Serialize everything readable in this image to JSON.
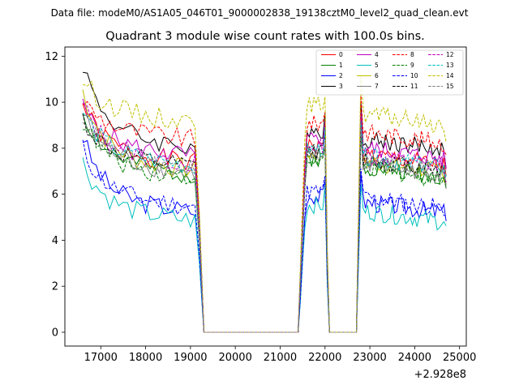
{
  "chart_data": {
    "type": "line",
    "suptitle": "Data file: modeM0/AS1A05_046T01_9000002838_19138cztM0_level2_quad_clean.evt",
    "title": "Quadrant 3 module wise count rates with 100.0s bins.",
    "xlabel": "",
    "ylabel": "",
    "x_offset_label": "+2.928e8",
    "xlim": [
      16200,
      25150
    ],
    "ylim": [
      -0.6,
      12.4
    ],
    "xticks": [
      17000,
      18000,
      19000,
      20000,
      21000,
      22000,
      23000,
      24000,
      25000
    ],
    "xtick_labels": [
      "17000",
      "18000",
      "19000",
      "20000",
      "21000",
      "22000",
      "23000",
      "24000",
      "25000"
    ],
    "yticks": [
      0,
      2,
      4,
      6,
      8,
      10,
      12
    ],
    "ytick_labels": [
      "0",
      "2",
      "4",
      "6",
      "8",
      "10",
      "12"
    ],
    "legend_position": "top-right",
    "segments": [
      {
        "t0": 16600,
        "t1": 19300,
        "step": 100
      },
      {
        "t0": 19300,
        "t1": 21400,
        "step": 100
      },
      {
        "t0": 21400,
        "t1": 22100,
        "step": 50
      },
      {
        "t0": 22100,
        "t1": 22700,
        "step": 100
      },
      {
        "t0": 22700,
        "t1": 24700,
        "step": 50
      }
    ],
    "series": [
      {
        "name": "0",
        "color": "#ff0000",
        "dash": "solid",
        "level": 7.9,
        "start": 9.9,
        "seed": 1
      },
      {
        "name": "1",
        "color": "#008000",
        "dash": "solid",
        "level": 7.4,
        "start": 9.6,
        "seed": 2
      },
      {
        "name": "2",
        "color": "#0000ff",
        "dash": "solid",
        "level": 5.8,
        "start": 8.5,
        "seed": 3
      },
      {
        "name": "3",
        "color": "#000000",
        "dash": "solid",
        "level": 8.6,
        "start": 11.7,
        "seed": 4
      },
      {
        "name": "4",
        "color": "#bf00bf",
        "dash": "solid",
        "level": 8.2,
        "start": 9.8,
        "seed": 5
      },
      {
        "name": "5",
        "color": "#00bfbf",
        "dash": "solid",
        "level": 5.4,
        "start": 7.4,
        "seed": 6
      },
      {
        "name": "6",
        "color": "#bfbf00",
        "dash": "solid",
        "level": 7.6,
        "start": 10.5,
        "seed": 7
      },
      {
        "name": "7",
        "color": "#808080",
        "dash": "solid",
        "level": 7.5,
        "start": 9.5,
        "seed": 8
      },
      {
        "name": "8",
        "color": "#ff0000",
        "dash": "dashed",
        "level": 8.9,
        "start": 10.1,
        "seed": 9
      },
      {
        "name": "9",
        "color": "#008000",
        "dash": "dashed",
        "level": 7.3,
        "start": 9.2,
        "seed": 10
      },
      {
        "name": "10",
        "color": "#0000ff",
        "dash": "dashed",
        "level": 6.0,
        "start": 8.0,
        "seed": 11
      },
      {
        "name": "11",
        "color": "#000000",
        "dash": "dashed",
        "level": 7.7,
        "start": 9.3,
        "seed": 12
      },
      {
        "name": "12",
        "color": "#bf00bf",
        "dash": "dashed",
        "level": 7.9,
        "start": 9.9,
        "seed": 13
      },
      {
        "name": "13",
        "color": "#00bfbf",
        "dash": "dashed",
        "level": 7.8,
        "start": 9.6,
        "seed": 14
      },
      {
        "name": "14",
        "color": "#bfbf00",
        "dash": "dashed",
        "level": 9.7,
        "start": 11.0,
        "seed": 15
      },
      {
        "name": "15",
        "color": "#808080",
        "dash": "dashed",
        "level": 7.6,
        "start": 9.5,
        "seed": 16
      }
    ]
  }
}
